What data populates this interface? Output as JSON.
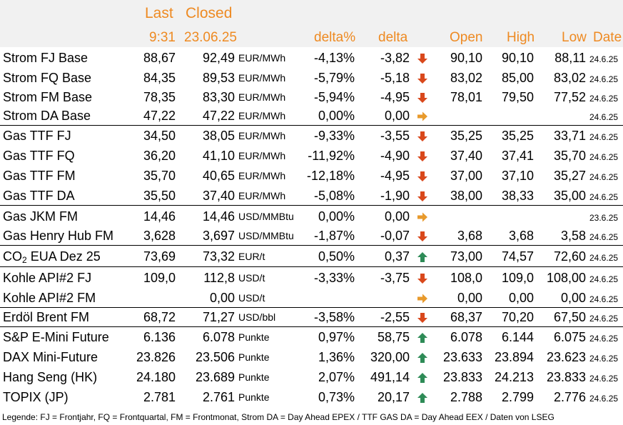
{
  "header": {
    "last_label": "Last",
    "closed_label": "Closed",
    "last_time": "9:31",
    "closed_date": "23.06.25",
    "delta_pct_label": "delta%",
    "delta_label": "delta",
    "open_label": "Open",
    "high_label": "High",
    "low_label": "Low",
    "date_label": "Date"
  },
  "colors": {
    "up": "#2e8b57",
    "down": "#d9481c",
    "flat": "#e89a2c",
    "header_text": "#ee8a22",
    "header_bg": "#f1f1f1"
  },
  "rows": [
    {
      "name": "Strom FJ Base",
      "last": "88,67",
      "closed": "92,49",
      "unit": "EUR/MWh",
      "delta_pct": "-4,13%",
      "delta": "-3,82",
      "trend": "down-arrow-icon",
      "open": "90,10",
      "high": "90,10",
      "low": "88,11",
      "date": "24.6.25"
    },
    {
      "name": "Strom FQ Base",
      "last": "84,35",
      "closed": "89,53",
      "unit": "EUR/MWh",
      "delta_pct": "-5,79%",
      "delta": "-5,18",
      "trend": "down-arrow-icon",
      "open": "83,02",
      "high": "85,00",
      "low": "83,02",
      "date": "24.6.25"
    },
    {
      "name": "Strom FM Base",
      "last": "78,35",
      "closed": "83,30",
      "unit": "EUR/MWh",
      "delta_pct": "-5,94%",
      "delta": "-4,95",
      "trend": "down-arrow-icon",
      "open": "78,01",
      "high": "79,50",
      "low": "77,52",
      "date": "24.6.25"
    },
    {
      "name": "Strom DA Base",
      "last": "47,22",
      "closed": "47,22",
      "unit": "EUR/MWh",
      "delta_pct": "0,00%",
      "delta": "0,00",
      "trend": "right-arrow-icon",
      "open": "",
      "high": "",
      "low": "",
      "date": "24.6.25"
    },
    {
      "name": "Gas TTF FJ",
      "last": "34,50",
      "closed": "38,05",
      "unit": "EUR/MWh",
      "delta_pct": "-9,33%",
      "delta": "-3,55",
      "trend": "down-arrow-icon",
      "open": "35,25",
      "high": "35,25",
      "low": "33,71",
      "date": "24.6.25"
    },
    {
      "name": "Gas TTF FQ",
      "last": "36,20",
      "closed": "41,10",
      "unit": "EUR/MWh",
      "delta_pct": "-11,92%",
      "delta": "-4,90",
      "trend": "down-arrow-icon",
      "open": "37,40",
      "high": "37,41",
      "low": "35,70",
      "date": "24.6.25"
    },
    {
      "name": "Gas TTF FM",
      "last": "35,70",
      "closed": "40,65",
      "unit": "EUR/MWh",
      "delta_pct": "-12,18%",
      "delta": "-4,95",
      "trend": "down-arrow-icon",
      "open": "37,00",
      "high": "37,10",
      "low": "35,27",
      "date": "24.6.25"
    },
    {
      "name": "Gas TTF DA",
      "last": "35,50",
      "closed": "37,40",
      "unit": "EUR/MWh",
      "delta_pct": "-5,08%",
      "delta": "-1,90",
      "trend": "down-arrow-icon",
      "open": "38,00",
      "high": "38,33",
      "low": "35,00",
      "date": "24.6.25"
    },
    {
      "name": "Gas JKM FM",
      "last": "14,46",
      "closed": "14,46",
      "unit": "USD/MMBtu",
      "delta_pct": "0,00%",
      "delta": "0,00",
      "trend": "right-arrow-icon",
      "open": "",
      "high": "",
      "low": "",
      "date": "23.6.25"
    },
    {
      "name": "Gas Henry Hub FM",
      "last": "3,628",
      "closed": "3,697",
      "unit": "USD/MMBtu",
      "delta_pct": "-1,87%",
      "delta": "-0,07",
      "trend": "down-arrow-icon",
      "open": "3,68",
      "high": "3,68",
      "low": "3,58",
      "date": "24.6.25"
    },
    {
      "name": "CO",
      "name_sub": "2",
      "name_rest": " EUA Dez 25",
      "last": "73,69",
      "closed": "73,32",
      "unit": "EUR/t",
      "delta_pct": "0,50%",
      "delta": "0,37",
      "trend": "up-arrow-icon",
      "open": "73,00",
      "high": "74,57",
      "low": "72,60",
      "date": "24.6.25"
    },
    {
      "name": "Kohle API#2 FJ",
      "last": "109,0",
      "closed": "112,8",
      "unit": "USD/t",
      "delta_pct": "-3,33%",
      "delta": "-3,75",
      "trend": "down-arrow-icon",
      "open": "108,0",
      "high": "109,0",
      "low": "108,00",
      "date": "24.6.25"
    },
    {
      "name": "Kohle API#2 FM",
      "last": "",
      "closed": "0,00",
      "unit": "USD/t",
      "delta_pct": "",
      "delta": "",
      "trend": "right-arrow-icon",
      "open": "0,00",
      "high": "0,00",
      "low": "0,00",
      "date": "24.6.25"
    },
    {
      "name": "Erdöl Brent FM",
      "last": "68,72",
      "closed": "71,27",
      "unit": "USD/bbl",
      "delta_pct": "-3,58%",
      "delta": "-2,55",
      "trend": "down-arrow-icon",
      "open": "68,37",
      "high": "70,20",
      "low": "67,50",
      "date": "24.6.25"
    },
    {
      "name": "S&P E-Mini Future",
      "last": "6.136",
      "closed": "6.078",
      "unit": "Punkte",
      "delta_pct": "0,97%",
      "delta": "58,75",
      "trend": "up-arrow-icon",
      "open": "6.078",
      "high": "6.144",
      "low": "6.075",
      "date": "24.6.25"
    },
    {
      "name": "DAX Mini-Future",
      "last": "23.826",
      "closed": "23.506",
      "unit": "Punkte",
      "delta_pct": "1,36%",
      "delta": "320,00",
      "trend": "up-arrow-icon",
      "open": "23.633",
      "high": "23.894",
      "low": "23.623",
      "date": "24.6.25"
    },
    {
      "name": "Hang Seng (HK)",
      "last": "24.180",
      "closed": "23.689",
      "unit": "Punkte",
      "delta_pct": "2,07%",
      "delta": "491,14",
      "trend": "up-arrow-icon",
      "open": "23.833",
      "high": "24.213",
      "low": "23.833",
      "date": "24.6.25"
    },
    {
      "name": "TOPIX (JP)",
      "last": "2.781",
      "closed": "2.761",
      "unit": "Punkte",
      "delta_pct": "0,73%",
      "delta": "20,17",
      "trend": "up-arrow-icon",
      "open": "2.788",
      "high": "2.799",
      "low": "2.776",
      "date": "24.6.25"
    }
  ],
  "legend": "Legende: FJ = Frontjahr, FQ = Frontquartal, FM = Frontmonat, Strom DA = Day Ahead EPEX / TTF GAS DA = Day Ahead EEX / Daten von LSEG"
}
